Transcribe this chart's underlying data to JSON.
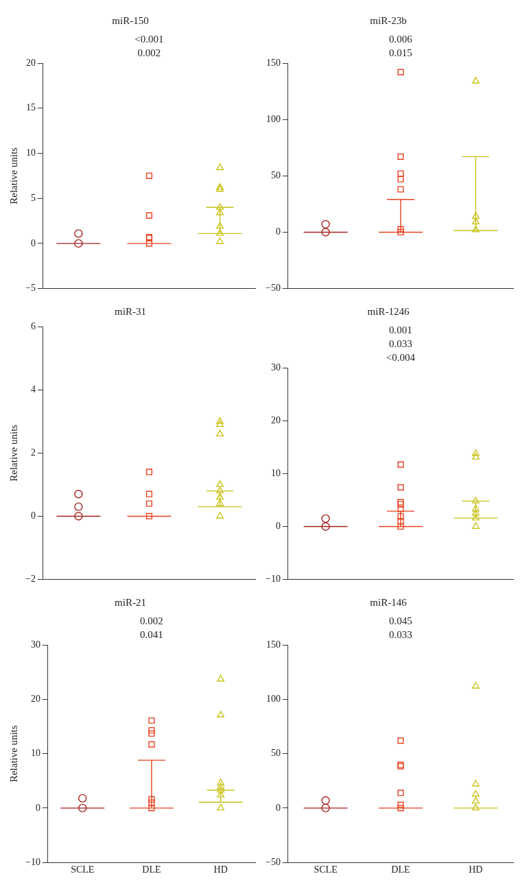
{
  "chart_data": [
    {
      "type": "scatter",
      "title": "miR-150",
      "ylabel": "Relative units",
      "categories": [
        "SCLE",
        "DLE",
        "HD"
      ],
      "ylim": [
        -5,
        20
      ],
      "yticks": [
        -5,
        0,
        5,
        10,
        15,
        20
      ],
      "grid": false,
      "legend": false,
      "tick_labels": "y",
      "annotations": [
        "<0.001",
        "0.002"
      ],
      "series": [
        {
          "type": "scatter",
          "marker": "circle",
          "color": "#a3231f",
          "x": [
            "SCLE",
            "SCLE"
          ],
          "values": [
            1.1,
            0
          ]
        },
        {
          "type": "scatter",
          "marker": "square",
          "color": "#e8401f",
          "x": [
            "DLE",
            "DLE",
            "DLE",
            "DLE",
            "DLE"
          ],
          "values": [
            7.5,
            3.1,
            0.7,
            0.6,
            0
          ]
        },
        {
          "type": "scatter",
          "marker": "triangle",
          "color": "#c9c31c",
          "x": [
            "HD",
            "HD",
            "HD",
            "HD",
            "HD",
            "HD",
            "HD",
            "HD"
          ],
          "values": [
            8.4,
            6.2,
            6.0,
            4.0,
            3.4,
            1.9,
            1.1,
            0.2
          ]
        },
        {
          "type": "box",
          "colors": [
            "#a3231f",
            "#e8401f",
            "#c9c31c"
          ],
          "boxes": [
            {
              "low": 0,
              "q1": 0,
              "median": 0,
              "q3": 0,
              "high": 0
            },
            {
              "low": 0,
              "q1": 0,
              "median": 0,
              "q3": 0,
              "high": 0
            },
            {
              "low": 1.1,
              "q1": 1.1,
              "median": 1.1,
              "q3": 1.1,
              "high": 4.0
            }
          ]
        }
      ]
    },
    {
      "type": "scatter",
      "title": "miR-23b",
      "categories": [
        "SCLE",
        "DLE",
        "HD"
      ],
      "ylim": [
        -50,
        150
      ],
      "yticks": [
        -50,
        0,
        50,
        100,
        150
      ],
      "grid": false,
      "legend": false,
      "tick_labels": "y",
      "annotations": [
        "0.006",
        "0.015"
      ],
      "series": [
        {
          "type": "scatter",
          "marker": "circle",
          "color": "#a3231f",
          "x": [
            "SCLE",
            "SCLE"
          ],
          "values": [
            7,
            0
          ]
        },
        {
          "type": "scatter",
          "marker": "square",
          "color": "#e8401f",
          "x": [
            "DLE",
            "DLE",
            "DLE",
            "DLE",
            "DLE",
            "DLE",
            "DLE"
          ],
          "values": [
            142,
            67,
            52,
            47,
            38,
            2.6,
            0
          ]
        },
        {
          "type": "scatter",
          "marker": "triangle",
          "color": "#c9c31c",
          "x": [
            "HD",
            "HD",
            "HD",
            "HD"
          ],
          "values": [
            134,
            14,
            9,
            2
          ]
        },
        {
          "type": "box",
          "colors": [
            "#a3231f",
            "#e8401f",
            "#c9c31c"
          ],
          "boxes": [
            {
              "low": 0,
              "q1": 0,
              "median": 0,
              "q3": 0,
              "high": 0
            },
            {
              "low": 0,
              "q1": 0,
              "median": 0,
              "q3": 0,
              "high": 29
            },
            {
              "low": 1.5,
              "q1": 1.5,
              "median": 1.5,
              "q3": 1.5,
              "high": 67
            }
          ]
        }
      ]
    },
    {
      "type": "scatter",
      "title": "miR-31",
      "ylabel": "Relative units",
      "categories": [
        "SCLE",
        "DLE",
        "HD"
      ],
      "ylim": [
        -2,
        6
      ],
      "yticks": [
        -2,
        0,
        2,
        4,
        6
      ],
      "grid": false,
      "legend": false,
      "tick_labels": "y",
      "series": [
        {
          "type": "scatter",
          "marker": "circle",
          "color": "#a3231f",
          "x": [
            "SCLE",
            "SCLE",
            "SCLE"
          ],
          "values": [
            0.7,
            0.3,
            0
          ]
        },
        {
          "type": "scatter",
          "marker": "square",
          "color": "#e8401f",
          "x": [
            "DLE",
            "DLE",
            "DLE",
            "DLE"
          ],
          "values": [
            1.4,
            0.7,
            0.4,
            0
          ]
        },
        {
          "type": "scatter",
          "marker": "triangle",
          "color": "#c9c31c",
          "x": [
            "HD",
            "HD",
            "HD",
            "HD",
            "HD",
            "HD",
            "HD",
            "HD"
          ],
          "values": [
            3.0,
            2.9,
            2.6,
            1.0,
            0.8,
            0.6,
            0.4,
            0
          ]
        },
        {
          "type": "box",
          "colors": [
            "#a3231f",
            "#e8401f",
            "#c9c31c"
          ],
          "boxes": [
            {
              "low": 0,
              "q1": 0,
              "median": 0,
              "q3": 0,
              "high": 0
            },
            {
              "low": 0,
              "q1": 0,
              "median": 0,
              "q3": 0,
              "high": 0
            },
            {
              "low": 0.3,
              "q1": 0.3,
              "median": 0.3,
              "q3": 0.3,
              "high": 0.8
            }
          ]
        }
      ]
    },
    {
      "type": "scatter",
      "title": "miR-1246",
      "categories": [
        "SCLE",
        "DLE",
        "HD"
      ],
      "ylim": [
        -10,
        30
      ],
      "yticks": [
        -10,
        0,
        10,
        20,
        30
      ],
      "grid": false,
      "legend": false,
      "tick_labels": "y",
      "annotations": [
        "0.001",
        "0.033",
        "<0.004"
      ],
      "series": [
        {
          "type": "scatter",
          "marker": "circle",
          "color": "#a3231f",
          "x": [
            "SCLE",
            "SCLE"
          ],
          "values": [
            1.5,
            0
          ]
        },
        {
          "type": "scatter",
          "marker": "square",
          "color": "#e8401f",
          "x": [
            "DLE",
            "DLE",
            "DLE",
            "DLE",
            "DLE",
            "DLE",
            "DLE",
            "DLE"
          ],
          "values": [
            11.7,
            7.4,
            4.6,
            4.2,
            3.3,
            1.9,
            1.0,
            0
          ]
        },
        {
          "type": "scatter",
          "marker": "triangle",
          "color": "#c9c31c",
          "x": [
            "HD",
            "HD",
            "HD",
            "HD",
            "HD",
            "HD",
            "HD"
          ],
          "values": [
            13.8,
            13.1,
            4.8,
            3.3,
            2.5,
            1.6,
            0
          ]
        },
        {
          "type": "box",
          "colors": [
            "#a3231f",
            "#e8401f",
            "#c9c31c"
          ],
          "boxes": [
            {
              "low": 0,
              "q1": 0,
              "median": 0,
              "q3": 0,
              "high": 0
            },
            {
              "low": 0,
              "q1": 0,
              "median": 0,
              "q3": 0,
              "high": 2.9
            },
            {
              "low": 1.6,
              "q1": 1.6,
              "median": 1.6,
              "q3": 1.6,
              "high": 4.8
            }
          ]
        }
      ]
    },
    {
      "type": "scatter",
      "title": "miR-21",
      "ylabel": "Relative units",
      "categories": [
        "SCLE",
        "DLE",
        "HD"
      ],
      "ylim": [
        -10,
        30
      ],
      "yticks": [
        -10,
        0,
        10,
        20,
        30
      ],
      "grid": false,
      "legend": false,
      "annotations": [
        "0.002",
        "0.041"
      ],
      "series": [
        {
          "type": "scatter",
          "marker": "circle",
          "color": "#a3231f",
          "x": [
            "SCLE",
            "SCLE"
          ],
          "values": [
            1.8,
            0
          ]
        },
        {
          "type": "scatter",
          "marker": "square",
          "color": "#e8401f",
          "x": [
            "DLE",
            "DLE",
            "DLE",
            "DLE",
            "DLE",
            "DLE",
            "DLE"
          ],
          "values": [
            16.1,
            14.3,
            13.7,
            11.7,
            1.6,
            1.0,
            0
          ]
        },
        {
          "type": "scatter",
          "marker": "triangle",
          "color": "#c9c31c",
          "x": [
            "HD",
            "HD",
            "HD",
            "HD",
            "HD",
            "HD",
            "HD"
          ],
          "values": [
            23.7,
            17.1,
            4.6,
            3.9,
            3.3,
            2.4,
            0
          ]
        },
        {
          "type": "box",
          "colors": [
            "#a3231f",
            "#e8401f",
            "#c9c31c"
          ],
          "boxes": [
            {
              "low": 0,
              "q1": 0,
              "median": 0,
              "q3": 0,
              "high": 0
            },
            {
              "low": 0,
              "q1": 0,
              "median": 0,
              "q3": 0,
              "high": 8.8
            },
            {
              "low": 1.1,
              "q1": 1.1,
              "median": 1.1,
              "q3": 1.1,
              "high": 3.3
            }
          ]
        }
      ]
    },
    {
      "type": "scatter",
      "title": "miR-146",
      "categories": [
        "SCLE",
        "DLE",
        "HD"
      ],
      "ylim": [
        -50,
        150
      ],
      "yticks": [
        -50,
        0,
        50,
        100,
        150
      ],
      "grid": false,
      "legend": false,
      "annotations": [
        "0.045",
        "0.033"
      ],
      "series": [
        {
          "type": "scatter",
          "marker": "circle",
          "color": "#a3231f",
          "x": [
            "SCLE",
            "SCLE"
          ],
          "values": [
            7,
            0
          ]
        },
        {
          "type": "scatter",
          "marker": "square",
          "color": "#e8401f",
          "x": [
            "DLE",
            "DLE",
            "DLE",
            "DLE",
            "DLE",
            "DLE"
          ],
          "values": [
            62,
            39.7,
            38.4,
            14,
            3,
            0
          ]
        },
        {
          "type": "scatter",
          "marker": "triangle",
          "color": "#c9c31c",
          "x": [
            "HD",
            "HD",
            "HD",
            "HD",
            "HD"
          ],
          "values": [
            112,
            22,
            12.7,
            6.3,
            0
          ]
        },
        {
          "type": "box",
          "colors": [
            "#a3231f",
            "#e8401f",
            "#c9c31c"
          ],
          "boxes": [
            {
              "low": 0,
              "q1": 0,
              "median": 0,
              "q3": 0,
              "high": 0
            },
            {
              "low": 0,
              "q1": 0,
              "median": 0,
              "q3": 0,
              "high": 0
            },
            {
              "low": 0,
              "q1": 0,
              "median": 0,
              "q3": 0,
              "high": 0
            }
          ]
        }
      ]
    }
  ]
}
